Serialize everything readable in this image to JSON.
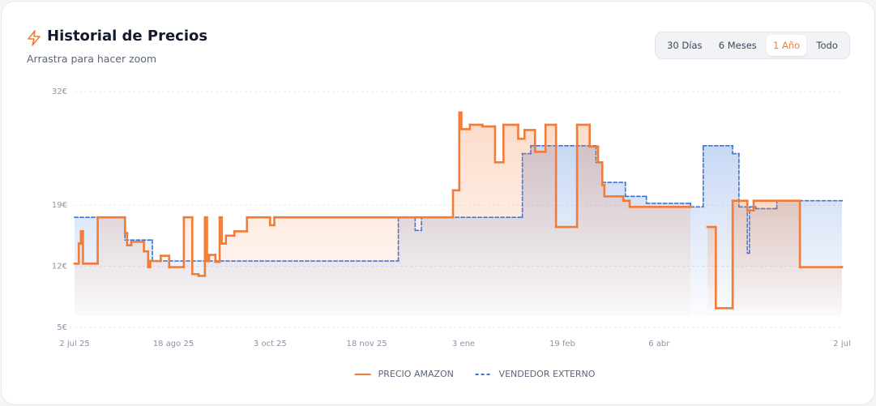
{
  "header": {
    "title": "Historial de Precios",
    "subtitle": "Arrastra para hacer zoom"
  },
  "range_buttons": {
    "options": [
      "30 Días",
      "6 Meses",
      "1 Año",
      "Todo"
    ],
    "active": 2
  },
  "chart_data": {
    "type": "line",
    "step": true,
    "area": true,
    "grid": true,
    "legend": "bottom",
    "xlim": [
      0,
      365
    ],
    "xticks": [
      {
        "value": 0,
        "label": "2 jul 25"
      },
      {
        "value": 47,
        "label": "18 ago 25"
      },
      {
        "value": 93,
        "label": "3 oct 25"
      },
      {
        "value": 139,
        "label": "18 nov 25"
      },
      {
        "value": 185,
        "label": "3 ene"
      },
      {
        "value": 232,
        "label": "19 feb"
      },
      {
        "value": 278,
        "label": "6 abr"
      },
      {
        "value": 365,
        "label": "2 jul"
      }
    ],
    "ylim": [
      5,
      32
    ],
    "yticks": [
      {
        "value": 32,
        "label": "32€"
      },
      {
        "value": 19,
        "label": "19€"
      },
      {
        "value": 12,
        "label": "12€"
      },
      {
        "value": 5,
        "label": "5€"
      }
    ],
    "series": [
      {
        "name": "PRECIO AMAZON",
        "color": "#f47b35",
        "dashed": false,
        "x": [
          0,
          2,
          3,
          4,
          11,
          24,
          25,
          27,
          33,
          35,
          36,
          41,
          45,
          52,
          56,
          59,
          62,
          63,
          64,
          67,
          69,
          70,
          72,
          76,
          82,
          93,
          95,
          180,
          183,
          184,
          188,
          194,
          200,
          204,
          211,
          214,
          219,
          224,
          229,
          239,
          245,
          249,
          251,
          252,
          261,
          264,
          293,
          301,
          305,
          313,
          320,
          323,
          345,
          365
        ],
        "values": [
          12.3,
          14.6,
          16,
          12.3,
          17.6,
          15.8,
          14.4,
          14.8,
          13.7,
          11.9,
          12.6,
          13.2,
          11.9,
          17.6,
          11.1,
          10.9,
          17.6,
          12.6,
          13.3,
          12.5,
          17.6,
          14.6,
          15.5,
          16,
          17.6,
          16.7,
          17.6,
          20.7,
          29.6,
          27.7,
          28.2,
          28,
          23.9,
          28.2,
          26.6,
          27.6,
          25.1,
          28.2,
          16.5,
          28.2,
          25.7,
          23.9,
          21.3,
          20,
          19.5,
          18.8,
          null,
          16.5,
          7.2,
          19.5,
          18.4,
          19.5,
          11.9,
          11.9
        ]
      },
      {
        "name": "VENDEDOR EXTERNO",
        "color": "#3b74d9",
        "dashed": true,
        "x": [
          0,
          24,
          37,
          154,
          162,
          165,
          213,
          217,
          248,
          251,
          262,
          272,
          293,
          299,
          313,
          316,
          320,
          321,
          324,
          334,
          365
        ],
        "values": [
          17.6,
          15.0,
          12.6,
          17.6,
          16.1,
          17.6,
          24.9,
          25.8,
          23.9,
          21.6,
          20.0,
          19.2,
          18.8,
          25.8,
          24.9,
          18.8,
          13.5,
          18.8,
          18.6,
          19.5,
          19.5
        ]
      }
    ]
  }
}
